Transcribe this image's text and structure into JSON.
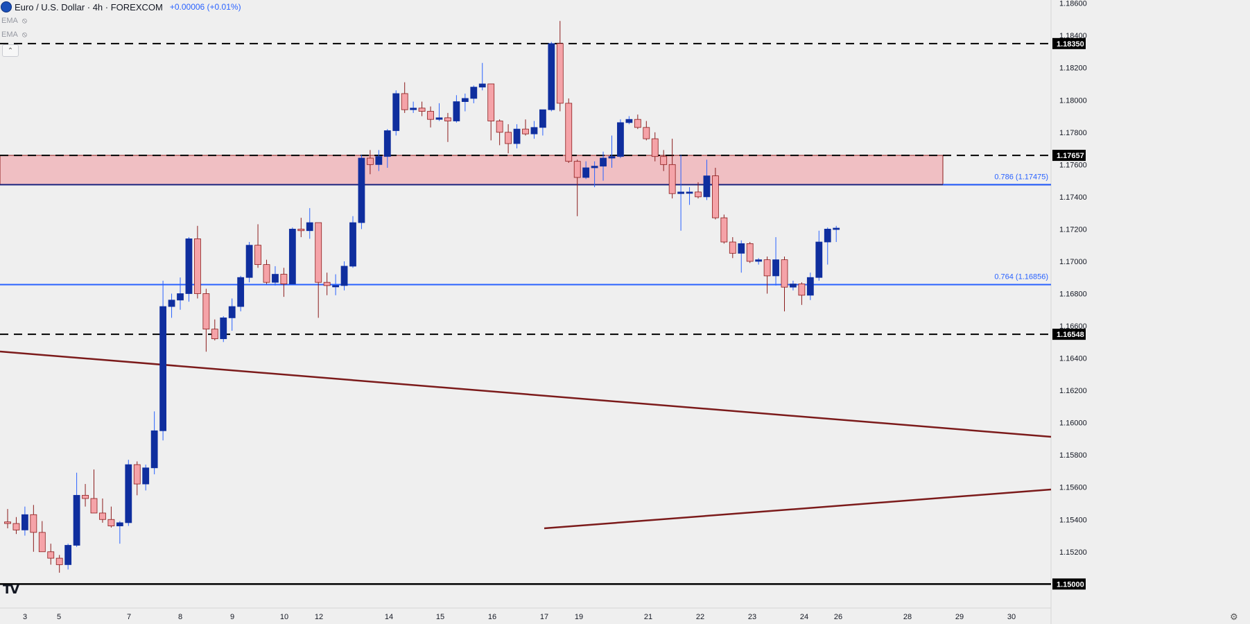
{
  "header": {
    "symbol_title": "Euro / U.S. Dollar · 4h · FOREXCOM",
    "change_text": "+0.00006 (+0.01%)",
    "indicators": [
      {
        "label": "EMA",
        "icon": "eye-hidden-icon"
      },
      {
        "label": "EMA",
        "icon": "eye-hidden-icon"
      }
    ]
  },
  "colors": {
    "up": "#0f2e9e",
    "up_wick": "#2962ff",
    "down": "#f5a3a8",
    "down_border": "#8b1a1a",
    "fib_line": "#2962ff",
    "zone_fill": "#f0bfc3",
    "trendline": "#7b1a1a",
    "price_tag_bg": "#000000",
    "price_tag_text": "#ffffff"
  },
  "chart_data": {
    "type": "candlestick",
    "title": "Euro / U.S. Dollar · 4h · FOREXCOM",
    "ylim": [
      1.14851,
      1.1862
    ],
    "y_ticks": [
      "1.18600",
      "1.18400",
      "1.18200",
      "1.18000",
      "1.17800",
      "1.17600",
      "1.17400",
      "1.17200",
      "1.17000",
      "1.16800",
      "1.16600",
      "1.16400",
      "1.16200",
      "1.16000",
      "1.15800",
      "1.15600",
      "1.15400",
      "1.15200"
    ],
    "x_ticks": [
      "3",
      "5",
      "7",
      "8",
      "9",
      "10",
      "12",
      "14",
      "15",
      "16",
      "17",
      "19",
      "21",
      "22",
      "23",
      "24",
      "26",
      "28",
      "29",
      "30"
    ],
    "price_tags": [
      "1.18350",
      "1.17657",
      "1.16548",
      "1.15000"
    ],
    "horizontal_levels": [
      {
        "price": 1.1835,
        "style": "dashed"
      },
      {
        "price": 1.17657,
        "style": "dashed"
      },
      {
        "price": 1.16548,
        "style": "dashed"
      },
      {
        "price": 1.15,
        "style": "solid"
      }
    ],
    "fib_levels": [
      {
        "price": 1.17475,
        "label": "0.786 (1.17475)"
      },
      {
        "price": 1.16856,
        "label": "0.764 (1.16856)"
      }
    ],
    "zone": {
      "top": 1.17657,
      "bottom": 1.17475
    },
    "candles": [
      {
        "o": 1.15385,
        "h": 1.15465,
        "l": 1.15345,
        "c": 1.15375
      },
      {
        "o": 1.15375,
        "h": 1.15415,
        "l": 1.1531,
        "c": 1.15335
      },
      {
        "o": 1.15335,
        "h": 1.1548,
        "l": 1.153,
        "c": 1.1543
      },
      {
        "o": 1.1543,
        "h": 1.1549,
        "l": 1.152,
        "c": 1.1532
      },
      {
        "o": 1.1532,
        "h": 1.1539,
        "l": 1.152,
        "c": 1.152
      },
      {
        "o": 1.152,
        "h": 1.1525,
        "l": 1.1512,
        "c": 1.1516
      },
      {
        "o": 1.1516,
        "h": 1.1518,
        "l": 1.1507,
        "c": 1.1512
      },
      {
        "o": 1.1512,
        "h": 1.1525,
        "l": 1.1509,
        "c": 1.1524
      },
      {
        "o": 1.1524,
        "h": 1.1569,
        "l": 1.1523,
        "c": 1.1555
      },
      {
        "o": 1.1555,
        "h": 1.1562,
        "l": 1.1548,
        "c": 1.1553
      },
      {
        "o": 1.1553,
        "h": 1.1571,
        "l": 1.1544,
        "c": 1.1544
      },
      {
        "o": 1.1544,
        "h": 1.1553,
        "l": 1.1538,
        "c": 1.154
      },
      {
        "o": 1.154,
        "h": 1.1548,
        "l": 1.1535,
        "c": 1.1536
      },
      {
        "o": 1.1536,
        "h": 1.1539,
        "l": 1.1525,
        "c": 1.1538
      },
      {
        "o": 1.1538,
        "h": 1.1577,
        "l": 1.1536,
        "c": 1.1574
      },
      {
        "o": 1.1574,
        "h": 1.1576,
        "l": 1.1555,
        "c": 1.1562
      },
      {
        "o": 1.1562,
        "h": 1.1574,
        "l": 1.1558,
        "c": 1.1572
      },
      {
        "o": 1.1572,
        "h": 1.1607,
        "l": 1.1568,
        "c": 1.1595
      },
      {
        "o": 1.1595,
        "h": 1.1688,
        "l": 1.1589,
        "c": 1.1672
      },
      {
        "o": 1.1672,
        "h": 1.168,
        "l": 1.1665,
        "c": 1.1676
      },
      {
        "o": 1.1676,
        "h": 1.169,
        "l": 1.167,
        "c": 1.168
      },
      {
        "o": 1.168,
        "h": 1.1715,
        "l": 1.1675,
        "c": 1.1714
      },
      {
        "o": 1.1714,
        "h": 1.1722,
        "l": 1.1677,
        "c": 1.168
      },
      {
        "o": 1.168,
        "h": 1.1683,
        "l": 1.1644,
        "c": 1.1658
      },
      {
        "o": 1.1658,
        "h": 1.1664,
        "l": 1.1651,
        "c": 1.1652
      },
      {
        "o": 1.1652,
        "h": 1.1666,
        "l": 1.165,
        "c": 1.1665
      },
      {
        "o": 1.1665,
        "h": 1.1677,
        "l": 1.1657,
        "c": 1.1672
      },
      {
        "o": 1.1672,
        "h": 1.1691,
        "l": 1.1669,
        "c": 1.169
      },
      {
        "o": 1.169,
        "h": 1.1712,
        "l": 1.1687,
        "c": 1.171
      },
      {
        "o": 1.171,
        "h": 1.1723,
        "l": 1.1696,
        "c": 1.1698
      },
      {
        "o": 1.1698,
        "h": 1.1701,
        "l": 1.1686,
        "c": 1.1687
      },
      {
        "o": 1.1687,
        "h": 1.1697,
        "l": 1.1685,
        "c": 1.1692
      },
      {
        "o": 1.1692,
        "h": 1.1696,
        "l": 1.1678,
        "c": 1.1686
      },
      {
        "o": 1.1686,
        "h": 1.1721,
        "l": 1.1686,
        "c": 1.172
      },
      {
        "o": 1.172,
        "h": 1.1727,
        "l": 1.1715,
        "c": 1.1719
      },
      {
        "o": 1.1719,
        "h": 1.1733,
        "l": 1.1714,
        "c": 1.1724
      },
      {
        "o": 1.1724,
        "h": 1.1724,
        "l": 1.1665,
        "c": 1.1687
      },
      {
        "o": 1.1687,
        "h": 1.1693,
        "l": 1.1679,
        "c": 1.1685
      },
      {
        "o": 1.1685,
        "h": 1.1692,
        "l": 1.1679,
        "c": 1.1685
      },
      {
        "o": 1.1685,
        "h": 1.17,
        "l": 1.1682,
        "c": 1.1697
      },
      {
        "o": 1.1697,
        "h": 1.1728,
        "l": 1.1696,
        "c": 1.1724
      },
      {
        "o": 1.1724,
        "h": 1.1766,
        "l": 1.172,
        "c": 1.1764
      },
      {
        "o": 1.1764,
        "h": 1.1769,
        "l": 1.1754,
        "c": 1.176
      },
      {
        "o": 1.176,
        "h": 1.1769,
        "l": 1.1756,
        "c": 1.1765
      },
      {
        "o": 1.1765,
        "h": 1.1782,
        "l": 1.1758,
        "c": 1.1781
      },
      {
        "o": 1.1781,
        "h": 1.1806,
        "l": 1.1778,
        "c": 1.1804
      },
      {
        "o": 1.1804,
        "h": 1.1811,
        "l": 1.1792,
        "c": 1.1794
      },
      {
        "o": 1.1794,
        "h": 1.1799,
        "l": 1.1792,
        "c": 1.1795
      },
      {
        "o": 1.1795,
        "h": 1.1799,
        "l": 1.179,
        "c": 1.1793
      },
      {
        "o": 1.1793,
        "h": 1.1796,
        "l": 1.1783,
        "c": 1.1788
      },
      {
        "o": 1.1788,
        "h": 1.1798,
        "l": 1.1787,
        "c": 1.1789
      },
      {
        "o": 1.1789,
        "h": 1.1792,
        "l": 1.1774,
        "c": 1.1787
      },
      {
        "o": 1.1787,
        "h": 1.1803,
        "l": 1.1786,
        "c": 1.1799
      },
      {
        "o": 1.1799,
        "h": 1.1804,
        "l": 1.1793,
        "c": 1.1801
      },
      {
        "o": 1.1801,
        "h": 1.1809,
        "l": 1.1798,
        "c": 1.1808
      },
      {
        "o": 1.1808,
        "h": 1.1823,
        "l": 1.1806,
        "c": 1.181
      },
      {
        "o": 1.181,
        "h": 1.181,
        "l": 1.1775,
        "c": 1.1787
      },
      {
        "o": 1.1787,
        "h": 1.1788,
        "l": 1.1772,
        "c": 1.178
      },
      {
        "o": 1.178,
        "h": 1.1785,
        "l": 1.1767,
        "c": 1.1773
      },
      {
        "o": 1.1773,
        "h": 1.1785,
        "l": 1.177,
        "c": 1.1782
      },
      {
        "o": 1.1782,
        "h": 1.1788,
        "l": 1.1778,
        "c": 1.1779
      },
      {
        "o": 1.1779,
        "h": 1.1787,
        "l": 1.1776,
        "c": 1.1783
      },
      {
        "o": 1.1783,
        "h": 1.1793,
        "l": 1.1778,
        "c": 1.1794
      },
      {
        "o": 1.1794,
        "h": 1.1836,
        "l": 1.1793,
        "c": 1.1835
      },
      {
        "o": 1.1835,
        "h": 1.1849,
        "l": 1.1793,
        "c": 1.1798
      },
      {
        "o": 1.1798,
        "h": 1.1801,
        "l": 1.1761,
        "c": 1.1762
      },
      {
        "o": 1.1762,
        "h": 1.1763,
        "l": 1.1728,
        "c": 1.1752
      },
      {
        "o": 1.1752,
        "h": 1.1762,
        "l": 1.1751,
        "c": 1.1758
      },
      {
        "o": 1.1758,
        "h": 1.1762,
        "l": 1.1746,
        "c": 1.1759
      },
      {
        "o": 1.1759,
        "h": 1.1768,
        "l": 1.175,
        "c": 1.1764
      },
      {
        "o": 1.1764,
        "h": 1.1778,
        "l": 1.1758,
        "c": 1.1765
      },
      {
        "o": 1.1765,
        "h": 1.1788,
        "l": 1.1764,
        "c": 1.1786
      },
      {
        "o": 1.1786,
        "h": 1.179,
        "l": 1.1785,
        "c": 1.1788
      },
      {
        "o": 1.1788,
        "h": 1.1791,
        "l": 1.1782,
        "c": 1.1783
      },
      {
        "o": 1.1783,
        "h": 1.1787,
        "l": 1.1775,
        "c": 1.1776
      },
      {
        "o": 1.1776,
        "h": 1.178,
        "l": 1.1762,
        "c": 1.1765
      },
      {
        "o": 1.1765,
        "h": 1.1769,
        "l": 1.1756,
        "c": 1.176
      },
      {
        "o": 1.176,
        "h": 1.1776,
        "l": 1.1739,
        "c": 1.1742
      },
      {
        "o": 1.1742,
        "h": 1.1766,
        "l": 1.1719,
        "c": 1.1743
      },
      {
        "o": 1.1743,
        "h": 1.1746,
        "l": 1.1735,
        "c": 1.1743
      },
      {
        "o": 1.1743,
        "h": 1.1749,
        "l": 1.1739,
        "c": 1.174
      },
      {
        "o": 1.174,
        "h": 1.1763,
        "l": 1.1738,
        "c": 1.1753
      },
      {
        "o": 1.1753,
        "h": 1.1758,
        "l": 1.1726,
        "c": 1.1727
      },
      {
        "o": 1.1727,
        "h": 1.1729,
        "l": 1.1711,
        "c": 1.1712
      },
      {
        "o": 1.1712,
        "h": 1.1715,
        "l": 1.1702,
        "c": 1.1705
      },
      {
        "o": 1.1705,
        "h": 1.1713,
        "l": 1.1693,
        "c": 1.1711
      },
      {
        "o": 1.1711,
        "h": 1.1712,
        "l": 1.1699,
        "c": 1.17
      },
      {
        "o": 1.17,
        "h": 1.1702,
        "l": 1.1698,
        "c": 1.1701
      },
      {
        "o": 1.1701,
        "h": 1.1703,
        "l": 1.168,
        "c": 1.1691
      },
      {
        "o": 1.1691,
        "h": 1.1715,
        "l": 1.1685,
        "c": 1.1701
      },
      {
        "o": 1.1701,
        "h": 1.1703,
        "l": 1.1669,
        "c": 1.1684
      },
      {
        "o": 1.1684,
        "h": 1.1688,
        "l": 1.1682,
        "c": 1.1686
      },
      {
        "o": 1.1686,
        "h": 1.1687,
        "l": 1.1673,
        "c": 1.1679
      },
      {
        "o": 1.1679,
        "h": 1.1693,
        "l": 1.1676,
        "c": 1.169
      },
      {
        "o": 1.169,
        "h": 1.1719,
        "l": 1.1688,
        "c": 1.1712
      },
      {
        "o": 1.1712,
        "h": 1.1721,
        "l": 1.1698,
        "c": 1.172
      },
      {
        "o": 1.172,
        "h": 1.1722,
        "l": 1.1712,
        "c": 1.17206
      }
    ]
  },
  "footer": {
    "logo_text": "TV",
    "settings_icon": "gear-icon"
  }
}
